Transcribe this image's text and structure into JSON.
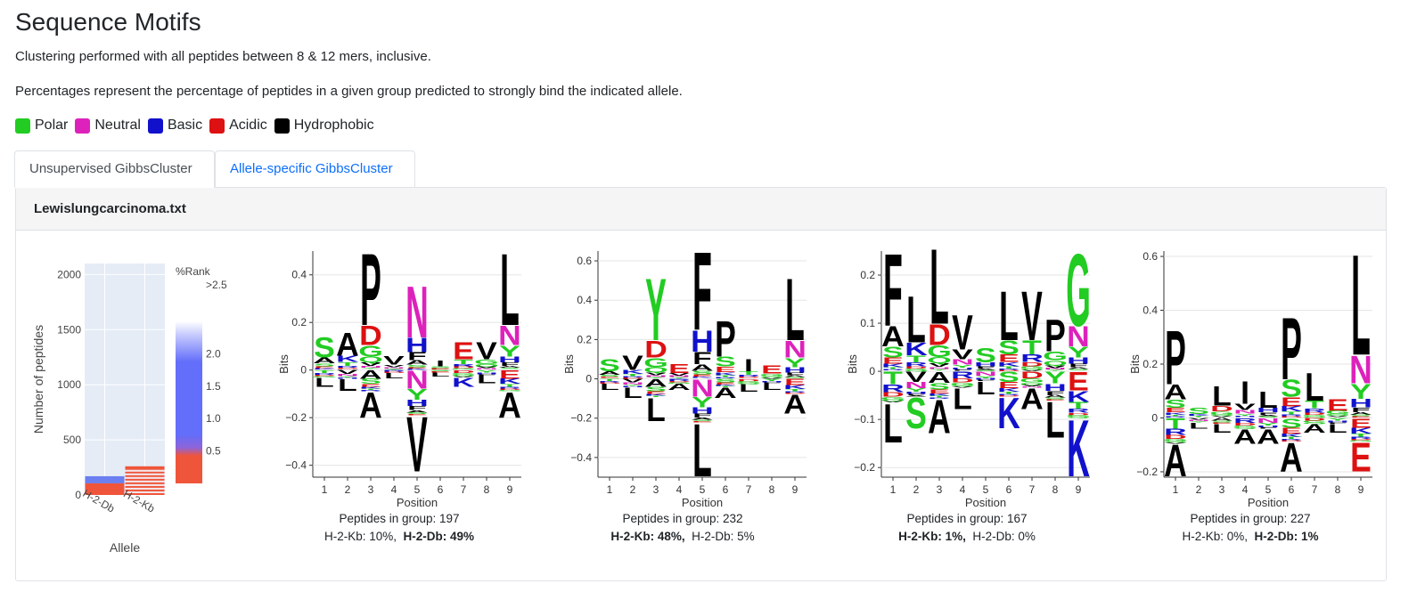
{
  "page": {
    "title": "Sequence Motifs",
    "description_1": "Clustering performed with all peptides between 8 & 12 mers, inclusive.",
    "description_2": "Percentages represent the percentage of peptides in a given group predicted to strongly bind the indicated allele."
  },
  "legend": [
    {
      "label": "Polar",
      "color": "#22cc22"
    },
    {
      "label": "Neutral",
      "color": "#dd22bb"
    },
    {
      "label": "Basic",
      "color": "#1111cc"
    },
    {
      "label": "Acidic",
      "color": "#dd1111"
    },
    {
      "label": "Hydrophobic",
      "color": "#000000"
    }
  ],
  "tabs": [
    {
      "label": "Unsupervised GibbsCluster",
      "active": true
    },
    {
      "label": "Allele-specific GibbsCluster",
      "active": false
    }
  ],
  "card": {
    "title": "Lewislungcarcinoma.txt"
  },
  "chart_data": [
    {
      "type": "bar",
      "title": "",
      "xlabel": "Allele",
      "ylabel": "Number of peptides",
      "categories": [
        "H-2-Db",
        "H-2-Kb"
      ],
      "values": [
        170,
        260
      ],
      "ylim": [
        0,
        2100
      ],
      "yticks": [
        0,
        500,
        1000,
        1500,
        2000
      ],
      "colorbar": {
        "title": "%Rank",
        "top_label": ">2.5",
        "ticks": [
          0.5,
          1.0,
          1.5,
          2.0
        ],
        "range": [
          0,
          2.5
        ]
      }
    },
    {
      "type": "logo",
      "xlabel": "Position",
      "ylabel": "Bits",
      "ylim": [
        -0.45,
        0.5
      ],
      "yticks": [
        -0.4,
        -0.2,
        0,
        0.2,
        0.4
      ],
      "positions": [
        1,
        2,
        3,
        4,
        5,
        6,
        7,
        8,
        9
      ],
      "top_letters": [
        {
          "pos": 1,
          "letter": "S",
          "value": 0.14
        },
        {
          "pos": 2,
          "letter": "A",
          "value": 0.16
        },
        {
          "pos": 3,
          "letter": "P",
          "value": 0.5
        },
        {
          "pos": 4,
          "letter": "V",
          "value": 0.06
        },
        {
          "pos": 5,
          "letter": "N",
          "value": 0.36
        },
        {
          "pos": 6,
          "letter": "I",
          "value": 0.04
        },
        {
          "pos": 7,
          "letter": "E",
          "value": 0.12
        },
        {
          "pos": 8,
          "letter": "V",
          "value": 0.12
        },
        {
          "pos": 9,
          "letter": "L",
          "value": 0.5
        }
      ],
      "bottom_letters": [
        {
          "pos": 1,
          "letter": "L",
          "value": -0.07
        },
        {
          "pos": 2,
          "letter": "L",
          "value": -0.09
        },
        {
          "pos": 3,
          "letter": "A",
          "value": -0.2
        },
        {
          "pos": 4,
          "letter": "L",
          "value": -0.04
        },
        {
          "pos": 5,
          "letter": "V",
          "value": -0.43
        },
        {
          "pos": 6,
          "letter": "L",
          "value": -0.03
        },
        {
          "pos": 7,
          "letter": "K",
          "value": -0.07
        },
        {
          "pos": 8,
          "letter": "L",
          "value": -0.06
        },
        {
          "pos": 9,
          "letter": "A",
          "value": -0.2
        }
      ],
      "caption_peptides": "Peptides in group: 197",
      "caption_allele_a": "H-2-Kb: 10%,",
      "caption_allele_b": "H-2-Db: 49%",
      "bold_allele": "b"
    },
    {
      "type": "logo",
      "xlabel": "Position",
      "ylabel": "Bits",
      "ylim": [
        -0.5,
        0.65
      ],
      "yticks": [
        -0.4,
        -0.2,
        0,
        0.2,
        0.4,
        0.6
      ],
      "positions": [
        1,
        2,
        3,
        4,
        5,
        6,
        7,
        8,
        9
      ],
      "top_letters": [
        {
          "pos": 1,
          "letter": "S",
          "value": 0.1
        },
        {
          "pos": 2,
          "letter": "V",
          "value": 0.12
        },
        {
          "pos": 3,
          "letter": "Y",
          "value": 0.52
        },
        {
          "pos": 4,
          "letter": "E",
          "value": 0.08
        },
        {
          "pos": 5,
          "letter": "F",
          "value": 0.66
        },
        {
          "pos": 6,
          "letter": "P",
          "value": 0.3
        },
        {
          "pos": 7,
          "letter": "I",
          "value": 0.1
        },
        {
          "pos": 8,
          "letter": "E",
          "value": 0.07
        },
        {
          "pos": 9,
          "letter": "L",
          "value": 0.52
        }
      ],
      "bottom_letters": [
        {
          "pos": 1,
          "letter": "L",
          "value": -0.06
        },
        {
          "pos": 2,
          "letter": "L",
          "value": -0.1
        },
        {
          "pos": 3,
          "letter": "L",
          "value": -0.22
        },
        {
          "pos": 4,
          "letter": "A",
          "value": -0.06
        },
        {
          "pos": 5,
          "letter": "L",
          "value": -0.5
        },
        {
          "pos": 6,
          "letter": "A",
          "value": -0.1
        },
        {
          "pos": 7,
          "letter": "L",
          "value": -0.07
        },
        {
          "pos": 8,
          "letter": "L",
          "value": -0.06
        },
        {
          "pos": 9,
          "letter": "A",
          "value": -0.18
        }
      ],
      "caption_peptides": "Peptides in group: 232",
      "caption_allele_a": "H-2-Kb: 48%,",
      "caption_allele_b": "H-2-Db: 5%",
      "bold_allele": "a"
    },
    {
      "type": "logo",
      "xlabel": "Position",
      "ylabel": "Bits",
      "ylim": [
        -0.22,
        0.25
      ],
      "yticks": [
        -0.2,
        -0.1,
        0,
        0.1,
        0.2
      ],
      "positions": [
        1,
        2,
        3,
        4,
        5,
        6,
        7,
        8,
        9
      ],
      "top_letters": [
        {
          "pos": 1,
          "letter": "F",
          "value": 0.25
        },
        {
          "pos": 2,
          "letter": "L",
          "value": 0.16
        },
        {
          "pos": 3,
          "letter": "L",
          "value": 0.26
        },
        {
          "pos": 4,
          "letter": "V",
          "value": 0.12
        },
        {
          "pos": 5,
          "letter": "S",
          "value": 0.05
        },
        {
          "pos": 6,
          "letter": "L",
          "value": 0.17
        },
        {
          "pos": 7,
          "letter": "V",
          "value": 0.17
        },
        {
          "pos": 8,
          "letter": "P",
          "value": 0.11
        },
        {
          "pos": 9,
          "letter": "G",
          "value": 0.25
        }
      ],
      "bottom_letters": [
        {
          "pos": 1,
          "letter": "L",
          "value": -0.15
        },
        {
          "pos": 2,
          "letter": "S",
          "value": -0.12
        },
        {
          "pos": 3,
          "letter": "A",
          "value": -0.13
        },
        {
          "pos": 4,
          "letter": "L",
          "value": -0.08
        },
        {
          "pos": 5,
          "letter": "L",
          "value": -0.05
        },
        {
          "pos": 6,
          "letter": "K",
          "value": -0.12
        },
        {
          "pos": 7,
          "letter": "A",
          "value": -0.08
        },
        {
          "pos": 8,
          "letter": "L",
          "value": -0.14
        },
        {
          "pos": 9,
          "letter": "K",
          "value": -0.22
        }
      ],
      "caption_peptides": "Peptides in group: 167",
      "caption_allele_a": "H-2-Kb: 1%,",
      "caption_allele_b": "H-2-Db: 0%",
      "bold_allele": "a"
    },
    {
      "type": "logo",
      "xlabel": "Position",
      "ylabel": "Bits",
      "ylim": [
        -0.22,
        0.62
      ],
      "yticks": [
        -0.2,
        0,
        0.2,
        0.4,
        0.6
      ],
      "positions": [
        1,
        2,
        3,
        4,
        5,
        6,
        7,
        8,
        9
      ],
      "top_letters": [
        {
          "pos": 1,
          "letter": "P",
          "value": 0.33
        },
        {
          "pos": 2,
          "letter": "S",
          "value": 0.04
        },
        {
          "pos": 3,
          "letter": "L",
          "value": 0.12
        },
        {
          "pos": 4,
          "letter": "I",
          "value": 0.14
        },
        {
          "pos": 5,
          "letter": "L",
          "value": 0.1
        },
        {
          "pos": 6,
          "letter": "P",
          "value": 0.38
        },
        {
          "pos": 7,
          "letter": "L",
          "value": 0.17
        },
        {
          "pos": 8,
          "letter": "E",
          "value": 0.07
        },
        {
          "pos": 9,
          "letter": "L",
          "value": 0.62
        }
      ],
      "bottom_letters": [
        {
          "pos": 1,
          "letter": "A",
          "value": -0.22
        },
        {
          "pos": 2,
          "letter": "L",
          "value": -0.04
        },
        {
          "pos": 3,
          "letter": "L",
          "value": -0.06
        },
        {
          "pos": 4,
          "letter": "A",
          "value": -0.1
        },
        {
          "pos": 5,
          "letter": "A",
          "value": -0.1
        },
        {
          "pos": 6,
          "letter": "A",
          "value": -0.2
        },
        {
          "pos": 7,
          "letter": "A",
          "value": -0.06
        },
        {
          "pos": 8,
          "letter": "L",
          "value": -0.06
        },
        {
          "pos": 9,
          "letter": "E",
          "value": -0.2
        }
      ],
      "caption_peptides": "Peptides in group: 227",
      "caption_allele_a": "H-2-Kb: 0%,",
      "caption_allele_b": "H-2-Db: 1%",
      "bold_allele": "b"
    }
  ]
}
